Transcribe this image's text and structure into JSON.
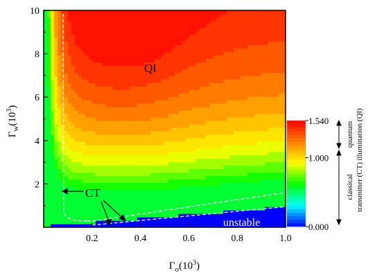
{
  "chart_data": {
    "type": "heatmap",
    "title": "",
    "xlabel": {
      "main": "Γ",
      "sub": "o",
      "suffix": "(10",
      "sup": "3",
      "end": ")"
    },
    "ylabel": {
      "main": "Γ",
      "sub": "w",
      "suffix": "(10",
      "sup": "3",
      "end": ")"
    },
    "xlim": [
      0.0,
      1.0
    ],
    "ylim": [
      0.0,
      10.0
    ],
    "x_ticks": [
      "0.2",
      "0.4",
      "0.6",
      "0.8",
      "1.0"
    ],
    "x_tick_values": [
      0.2,
      0.4,
      0.6,
      0.8,
      1.0
    ],
    "y_ticks": [
      "2",
      "4",
      "6",
      "8",
      "10"
    ],
    "y_tick_values": [
      2,
      4,
      6,
      8,
      10
    ],
    "colorbar": {
      "ticks": [
        "1.540",
        "1.000",
        "0.000"
      ],
      "tick_values": [
        1.54,
        1.0,
        0.0
      ],
      "min": 0.0,
      "max": 1.54,
      "colors": [
        "#0000ff",
        "#0080ff",
        "#00ffff",
        "#00ff80",
        "#00ff00",
        "#80ff00",
        "#ffff00",
        "#ffbf00",
        "#ff8000",
        "#ff4000",
        "#ff0000"
      ],
      "upper_label": [
        "quantum",
        "illumination (QI)"
      ],
      "lower_label": [
        "classical",
        "transmitter (CT)"
      ]
    },
    "annotations": {
      "qi": "QI",
      "ct": "CT",
      "unstable": "unstable"
    },
    "boundary_dashed": true
  }
}
